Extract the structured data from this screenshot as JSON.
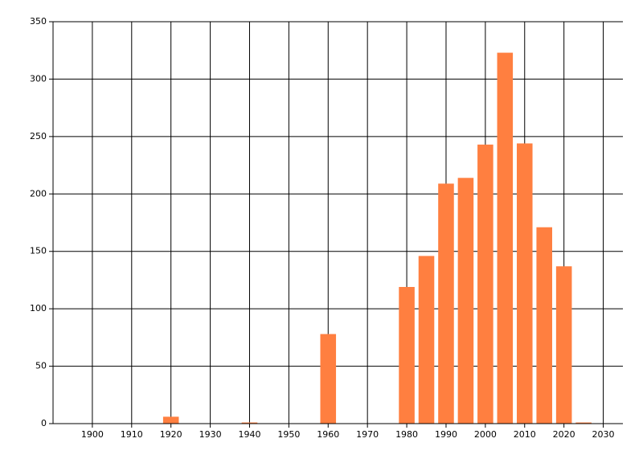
{
  "chart_data": {
    "type": "bar",
    "color": "#ff7f40",
    "grid": true,
    "x": [
      1920,
      1940,
      1960,
      1980,
      1985,
      1990,
      1995,
      2000,
      2005,
      2010,
      2015,
      2020,
      2025
    ],
    "values": [
      6,
      1,
      78,
      119,
      146,
      209,
      214,
      243,
      323,
      244,
      171,
      137,
      1
    ],
    "xlim": [
      1890,
      2035
    ],
    "xticks": [
      1900,
      1910,
      1920,
      1930,
      1940,
      1950,
      1960,
      1970,
      1980,
      1990,
      2000,
      2010,
      2020,
      2030
    ],
    "ylim": [
      0,
      350
    ],
    "yticks": [
      0,
      50,
      100,
      150,
      200,
      250,
      300,
      350
    ]
  }
}
